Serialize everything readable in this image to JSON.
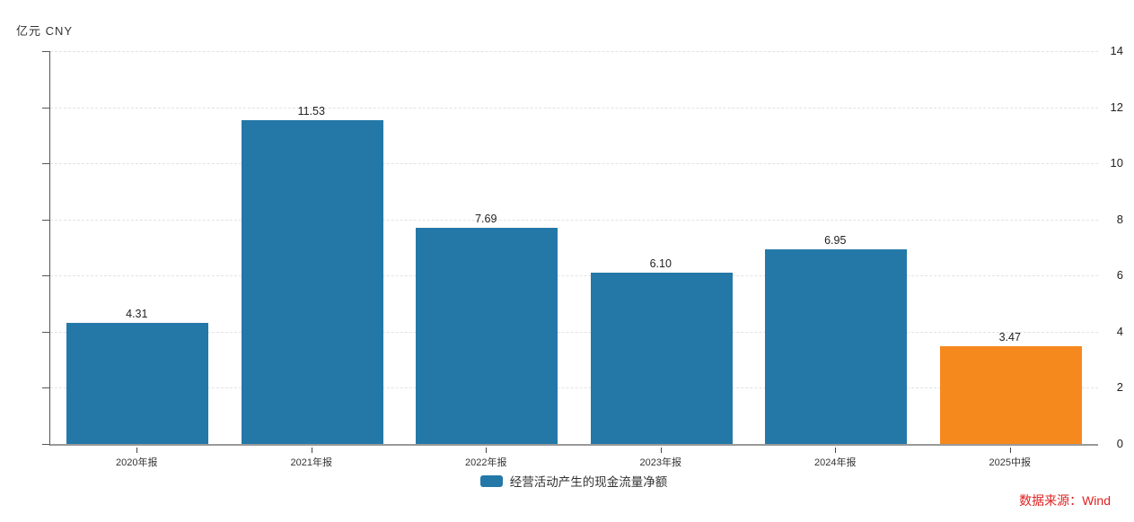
{
  "chart_data": {
    "type": "bar",
    "title": "",
    "unit_label": "亿元 CNY",
    "categories": [
      "2020年报",
      "2021年报",
      "2022年报",
      "2023年报",
      "2024年报",
      "2025中报"
    ],
    "series": [
      {
        "name": "经营活动产生的现金流量净额",
        "values": [
          4.31,
          11.53,
          7.69,
          6.1,
          6.95,
          3.47
        ]
      }
    ],
    "value_labels": [
      "4.31",
      "11.53",
      "7.69",
      "6.10",
      "6.95",
      "3.47"
    ],
    "xlabel": "",
    "ylabel": "亿元 CNY",
    "ylim": [
      0,
      14
    ],
    "ytick_step": 2,
    "grid": "horizontal-dashed",
    "legend_position": "bottom-center",
    "bar_color": "#2478a8",
    "highlight_bar_color": "#f6891e",
    "bar_colors": [
      "#2478a8",
      "#2478a8",
      "#2478a8",
      "#2478a8",
      "#2478a8",
      "#f6891e"
    ]
  },
  "legend": {
    "label": "经营活动产生的现金流量净额",
    "swatch_color": "#2478a8"
  },
  "source": {
    "label": "数据来源：Wind",
    "color": "#e02020"
  }
}
